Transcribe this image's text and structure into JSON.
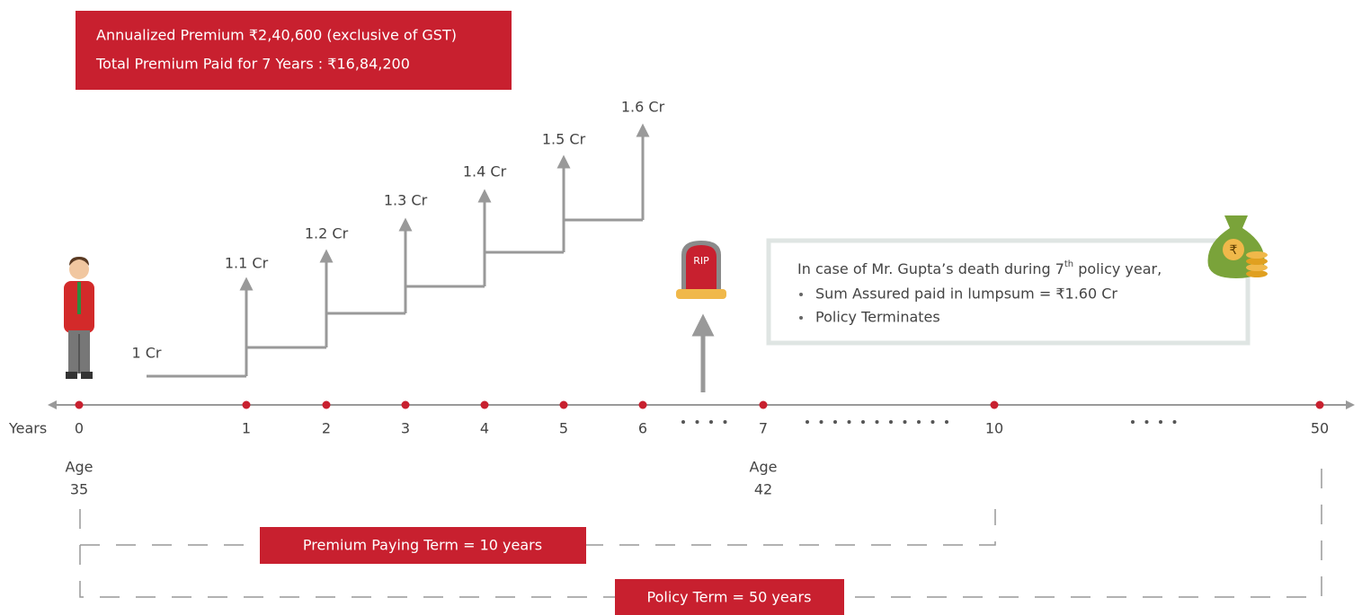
{
  "header": {
    "line1": "Annualized Premium ₹2,40,600 (exclusive of GST)",
    "line2": "Total Premium Paid for 7 Years : ₹16,84,200"
  },
  "steps": [
    "1 Cr",
    "1.1 Cr",
    "1.2 Cr",
    "1.3 Cr",
    "1.4 Cr",
    "1.5 Cr",
    "1.6 Cr"
  ],
  "timeline": {
    "label": "Years",
    "ticks": [
      "0",
      "1",
      "2",
      "3",
      "4",
      "5",
      "6",
      "7",
      "10",
      "50"
    ]
  },
  "ages": [
    {
      "label": "Age",
      "value": "35"
    },
    {
      "label": "Age",
      "value": "42"
    }
  ],
  "tombstone": "RIP",
  "info": {
    "line_start": "In case of Mr. Gupta’s death during 7",
    "superscript": "th",
    "line_end": " policy year,",
    "bullets": [
      "Sum Assured paid in lumpsum = ₹1.60 Cr",
      "Policy Terminates"
    ]
  },
  "money_bag": "₹",
  "premium_paying_term": "Premium Paying Term = 10 years",
  "policy_term": "Policy Term = 50 years"
}
